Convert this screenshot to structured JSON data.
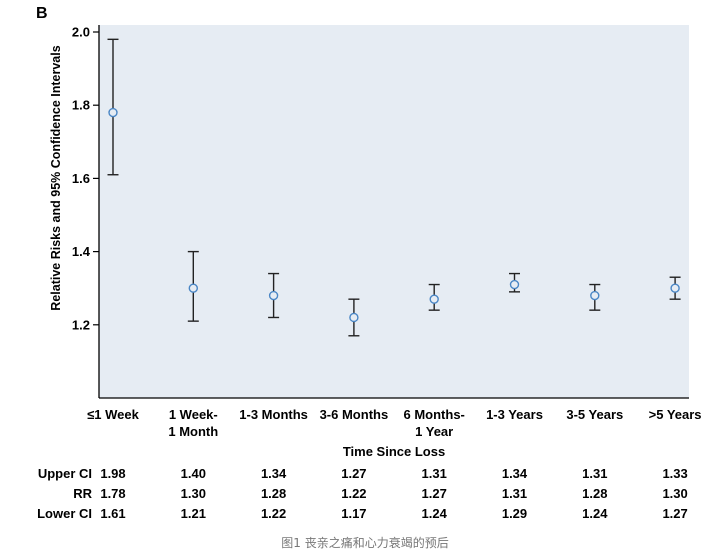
{
  "panel_label": "B",
  "caption": "图1  丧亲之痛和心力衰竭的预后",
  "colors": {
    "plot_bg": "#e6ecf3",
    "marker": "#4a86c5",
    "error_bar": "#222222",
    "axis": "#000000"
  },
  "chart_data": {
    "type": "scatter",
    "subtype": "point estimate with 95% CI error bars",
    "ylabel": "Relative Risks and 95% Confidence Intervals",
    "xlabel": "Time Since Loss",
    "ylim": [
      1.0,
      2.0
    ],
    "yticks": [
      1.2,
      1.4,
      1.6,
      1.8,
      2.0
    ],
    "ytick_labels": [
      "1.2",
      "1.4",
      "1.6",
      "1.8",
      "2.0"
    ],
    "categories": [
      [
        "≤1 Week"
      ],
      [
        "1 Week-",
        "1 Month"
      ],
      [
        "1-3 Months"
      ],
      [
        "3-6 Months"
      ],
      [
        "6 Months-",
        "1 Year"
      ],
      [
        "1-3 Years"
      ],
      [
        "3-5 Years"
      ],
      [
        ">5 Years"
      ]
    ],
    "rr": [
      1.78,
      1.3,
      1.28,
      1.22,
      1.27,
      1.31,
      1.28,
      1.3
    ],
    "upper_ci": [
      1.98,
      1.4,
      1.34,
      1.27,
      1.31,
      1.34,
      1.31,
      1.33
    ],
    "lower_ci": [
      1.61,
      1.21,
      1.22,
      1.17,
      1.24,
      1.29,
      1.24,
      1.27
    ]
  },
  "table": {
    "rows": [
      {
        "label": "Upper CI",
        "values": [
          "1.98",
          "1.40",
          "1.34",
          "1.27",
          "1.31",
          "1.34",
          "1.31",
          "1.33"
        ]
      },
      {
        "label": "RR",
        "values": [
          "1.78",
          "1.30",
          "1.28",
          "1.22",
          "1.27",
          "1.31",
          "1.28",
          "1.30"
        ]
      },
      {
        "label": "Lower CI",
        "values": [
          "1.61",
          "1.21",
          "1.22",
          "1.17",
          "1.24",
          "1.29",
          "1.24",
          "1.27"
        ]
      }
    ]
  }
}
